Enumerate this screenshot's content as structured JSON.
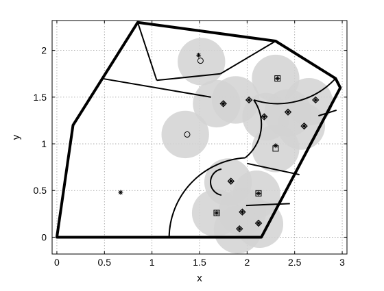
{
  "chart_data": {
    "type": "scatter",
    "title": "",
    "xlabel": "x",
    "ylabel": "y",
    "xlim": [
      -0.05,
      3.05
    ],
    "ylim": [
      -0.18,
      2.32
    ],
    "xticks": [
      0,
      0.5,
      1,
      1.5,
      2,
      2.5,
      3
    ],
    "yticks": [
      0,
      0.5,
      1,
      1.5,
      2
    ],
    "xtick_labels": [
      "0",
      "0.5",
      "1",
      "1.5",
      "2",
      "2.5",
      "3"
    ],
    "ytick_labels": [
      "0",
      "0.5",
      "1",
      "1.5",
      "2"
    ],
    "grid": true,
    "colors": {
      "region": "#d2d2d2",
      "boundary": "#000000",
      "grid": "#999999"
    },
    "environment_boundary": [
      [
        0,
        0
      ],
      [
        2.15,
        0
      ],
      [
        2.98,
        1.6
      ],
      [
        2.93,
        1.7
      ],
      [
        2.3,
        2.1
      ],
      [
        0.85,
        2.3
      ],
      [
        0.17,
        1.2
      ]
    ],
    "sensing_radius": 0.25,
    "agents": [
      {
        "x": 1.52,
        "y": 1.88
      },
      {
        "x": 1.68,
        "y": 1.43
      },
      {
        "x": 1.35,
        "y": 1.1
      },
      {
        "x": 1.88,
        "y": 1.47
      },
      {
        "x": 2.3,
        "y": 1.7
      },
      {
        "x": 2.2,
        "y": 1.29
      },
      {
        "x": 2.43,
        "y": 1.33
      },
      {
        "x": 2.65,
        "y": 1.45
      },
      {
        "x": 2.57,
        "y": 1.19
      },
      {
        "x": 2.3,
        "y": 0.95
      },
      {
        "x": 1.8,
        "y": 0.59
      },
      {
        "x": 2.1,
        "y": 0.46
      },
      {
        "x": 1.67,
        "y": 0.26
      },
      {
        "x": 1.95,
        "y": 0.27
      },
      {
        "x": 2.13,
        "y": 0.14
      },
      {
        "x": 1.9,
        "y": 0.08
      }
    ],
    "markers": [
      {
        "x": 1.51,
        "y": 1.89,
        "symbol": "circle"
      },
      {
        "x": 1.49,
        "y": 1.95,
        "symbol": "star"
      },
      {
        "x": 1.37,
        "y": 1.1,
        "symbol": "circle"
      },
      {
        "x": 0.67,
        "y": 0.48,
        "symbol": "star"
      },
      {
        "x": 1.75,
        "y": 1.43,
        "symbol": "diamond"
      },
      {
        "x": 1.75,
        "y": 1.43,
        "symbol": "star"
      },
      {
        "x": 2.02,
        "y": 1.47,
        "symbol": "diamond"
      },
      {
        "x": 2.02,
        "y": 1.47,
        "symbol": "star"
      },
      {
        "x": 2.32,
        "y": 1.7,
        "symbol": "square"
      },
      {
        "x": 2.32,
        "y": 1.7,
        "symbol": "star"
      },
      {
        "x": 2.18,
        "y": 1.29,
        "symbol": "diamond"
      },
      {
        "x": 2.18,
        "y": 1.29,
        "symbol": "star"
      },
      {
        "x": 2.43,
        "y": 1.34,
        "symbol": "diamond"
      },
      {
        "x": 2.43,
        "y": 1.34,
        "symbol": "star"
      },
      {
        "x": 2.72,
        "y": 1.47,
        "symbol": "diamond"
      },
      {
        "x": 2.72,
        "y": 1.47,
        "symbol": "star"
      },
      {
        "x": 2.6,
        "y": 1.19,
        "symbol": "diamond"
      },
      {
        "x": 2.6,
        "y": 1.19,
        "symbol": "star"
      },
      {
        "x": 2.3,
        "y": 0.95,
        "symbol": "square"
      },
      {
        "x": 2.3,
        "y": 0.98,
        "symbol": "star"
      },
      {
        "x": 1.83,
        "y": 0.6,
        "symbol": "diamond"
      },
      {
        "x": 1.83,
        "y": 0.6,
        "symbol": "star"
      },
      {
        "x": 2.12,
        "y": 0.47,
        "symbol": "square"
      },
      {
        "x": 2.12,
        "y": 0.47,
        "symbol": "star"
      },
      {
        "x": 1.68,
        "y": 0.26,
        "symbol": "square"
      },
      {
        "x": 1.68,
        "y": 0.26,
        "symbol": "star"
      },
      {
        "x": 1.95,
        "y": 0.27,
        "symbol": "diamond"
      },
      {
        "x": 1.95,
        "y": 0.27,
        "symbol": "star"
      },
      {
        "x": 2.12,
        "y": 0.15,
        "symbol": "diamond"
      },
      {
        "x": 2.12,
        "y": 0.15,
        "symbol": "star"
      },
      {
        "x": 1.92,
        "y": 0.09,
        "symbol": "diamond"
      },
      {
        "x": 1.92,
        "y": 0.09,
        "symbol": "star"
      }
    ],
    "partition_lines": [
      [
        [
          0.85,
          2.3
        ],
        [
          1.05,
          1.68
        ]
      ],
      [
        [
          1.05,
          1.68
        ],
        [
          1.72,
          1.75
        ]
      ],
      [
        [
          1.72,
          1.75
        ],
        [
          2.3,
          2.1
        ]
      ],
      [
        [
          0.47,
          1.7
        ],
        [
          1.62,
          1.5
        ]
      ],
      [
        [
          2.0,
          0.79
        ],
        [
          2.55,
          0.67
        ]
      ],
      [
        [
          1.99,
          0.34
        ],
        [
          2.45,
          0.36
        ]
      ],
      [
        [
          2.75,
          1.3
        ],
        [
          2.94,
          1.36
        ]
      ]
    ],
    "partition_arcs": [
      {
        "from": [
          2.07,
          1.47
        ],
        "to": [
          2.93,
          1.7
        ],
        "center": [
          2.93,
          0.9
        ],
        "radius": 0.83
      },
      {
        "from": [
          1.98,
          0.85
        ],
        "to": [
          2.07,
          1.47
        ],
        "center": [
          2.35,
          1.2
        ],
        "radius": 0.45
      },
      {
        "from": [
          1.98,
          0.85
        ],
        "to": [
          1.18,
          0.0
        ],
        "center": [
          1.95,
          0.0
        ],
        "radius": 0.85
      },
      {
        "from": [
          1.73,
          0.73
        ],
        "to": [
          1.73,
          0.45
        ],
        "center": [
          1.85,
          0.59
        ],
        "radius": 0.14
      }
    ]
  }
}
